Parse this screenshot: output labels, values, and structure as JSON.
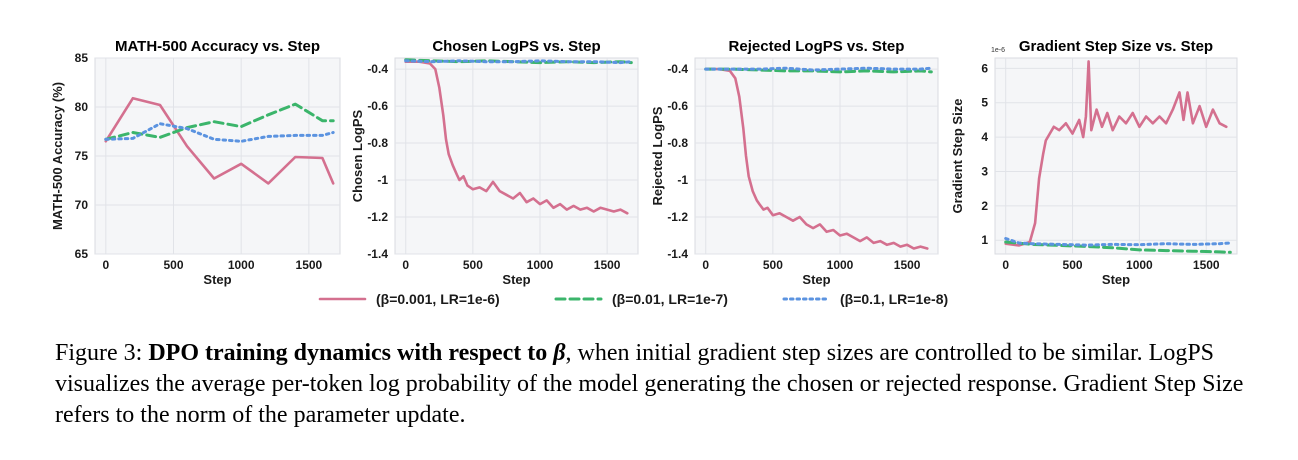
{
  "figure": {
    "caption_number": "Figure 3:",
    "caption_bold": "DPO training dynamics with respect to",
    "caption_symbol": "β",
    "caption_rest": ", when initial gradient step sizes are controlled to be similar. LogPS visualizes the average per-token log probability of the model generating the chosen or rejected response. Gradient Step Size refers to the norm of the parameter update."
  },
  "legend": [
    {
      "label": "(β=0.001, LR=1e-6)",
      "color": "#d4708f",
      "style": "solid"
    },
    {
      "label": "(β=0.01, LR=1e-7)",
      "color": "#3bb56b",
      "style": "dashed"
    },
    {
      "label": "(β=0.1, LR=1e-8)",
      "color": "#5b93e0",
      "style": "dotted"
    }
  ],
  "chart_data": [
    {
      "type": "line",
      "title": "MATH-500 Accuracy vs. Step",
      "xlabel": "Step",
      "ylabel": "MATH-500 Accuracy (%)",
      "xlim": [
        -80,
        1730
      ],
      "ylim": [
        65,
        85
      ],
      "xticks": [
        0,
        500,
        1000,
        1500
      ],
      "yticks": [
        65,
        70,
        75,
        80,
        85
      ],
      "sci_label": "",
      "grid": true,
      "series": [
        {
          "name": "(β=0.001, LR=1e-6)",
          "x": [
            0,
            200,
            400,
            600,
            800,
            1000,
            1200,
            1400,
            1600,
            1680
          ],
          "y": [
            76.5,
            80.9,
            80.2,
            76.0,
            72.7,
            74.2,
            72.2,
            74.9,
            74.8,
            72.2
          ]
        },
        {
          "name": "(β=0.01, LR=1e-7)",
          "x": [
            0,
            200,
            400,
            600,
            800,
            1000,
            1200,
            1400,
            1600,
            1680
          ],
          "y": [
            76.7,
            77.4,
            76.9,
            77.9,
            78.5,
            78.0,
            79.2,
            80.3,
            78.6,
            78.6
          ]
        },
        {
          "name": "(β=0.1, LR=1e-8)",
          "x": [
            0,
            200,
            400,
            600,
            800,
            1000,
            1200,
            1400,
            1600,
            1680
          ],
          "y": [
            76.7,
            76.8,
            78.3,
            77.8,
            76.7,
            76.5,
            77.0,
            77.1,
            77.1,
            77.4
          ]
        }
      ]
    },
    {
      "type": "line",
      "title": "Chosen LogPS vs. Step",
      "xlabel": "Step",
      "ylabel": "Chosen LogPS",
      "xlim": [
        -80,
        1730
      ],
      "ylim": [
        -1.4,
        -0.34
      ],
      "xticks": [
        0,
        500,
        1000,
        1500
      ],
      "yticks": [
        -1.4,
        -1.2,
        -1.0,
        -0.8,
        -0.6,
        -0.4
      ],
      "sci_label": "",
      "grid": true,
      "series": [
        {
          "name": "(β=0.001, LR=1e-6)",
          "x": [
            0,
            100,
            180,
            220,
            250,
            280,
            300,
            320,
            350,
            380,
            400,
            430,
            460,
            500,
            550,
            600,
            650,
            700,
            750,
            800,
            850,
            900,
            950,
            1000,
            1050,
            1100,
            1150,
            1200,
            1250,
            1300,
            1350,
            1400,
            1450,
            1500,
            1550,
            1600,
            1650
          ],
          "y": [
            -0.36,
            -0.36,
            -0.37,
            -0.4,
            -0.5,
            -0.65,
            -0.78,
            -0.86,
            -0.92,
            -0.97,
            -1.0,
            -0.98,
            -1.03,
            -1.05,
            -1.04,
            -1.06,
            -1.01,
            -1.06,
            -1.08,
            -1.1,
            -1.07,
            -1.12,
            -1.1,
            -1.13,
            -1.11,
            -1.15,
            -1.13,
            -1.16,
            -1.14,
            -1.16,
            -1.15,
            -1.17,
            -1.15,
            -1.16,
            -1.17,
            -1.16,
            -1.18
          ]
        },
        {
          "name": "(β=0.01, LR=1e-7)",
          "x": [
            0,
            200,
            400,
            600,
            800,
            1000,
            1200,
            1400,
            1600,
            1680
          ],
          "y": [
            -0.35,
            -0.355,
            -0.36,
            -0.355,
            -0.36,
            -0.365,
            -0.36,
            -0.365,
            -0.36,
            -0.365
          ]
        },
        {
          "name": "(β=0.1, LR=1e-8)",
          "x": [
            0,
            200,
            400,
            600,
            800,
            1000,
            1200,
            1400,
            1600,
            1680
          ],
          "y": [
            -0.355,
            -0.36,
            -0.355,
            -0.36,
            -0.36,
            -0.355,
            -0.36,
            -0.36,
            -0.365,
            -0.36
          ]
        }
      ]
    },
    {
      "type": "line",
      "title": "Rejected LogPS vs. Step",
      "xlabel": "Step",
      "ylabel": "Rejected LogPS",
      "xlim": [
        -80,
        1730
      ],
      "ylim": [
        -1.4,
        -0.34
      ],
      "xticks": [
        0,
        500,
        1000,
        1500
      ],
      "yticks": [
        -1.4,
        -1.2,
        -1.0,
        -0.8,
        -0.6,
        -0.4
      ],
      "sci_label": "",
      "grid": true,
      "series": [
        {
          "name": "(β=0.001, LR=1e-6)",
          "x": [
            0,
            100,
            180,
            220,
            250,
            280,
            300,
            320,
            350,
            380,
            400,
            430,
            460,
            500,
            550,
            600,
            650,
            700,
            750,
            800,
            850,
            900,
            950,
            1000,
            1050,
            1100,
            1150,
            1200,
            1250,
            1300,
            1350,
            1400,
            1450,
            1500,
            1550,
            1600,
            1650
          ],
          "y": [
            -0.4,
            -0.4,
            -0.41,
            -0.45,
            -0.55,
            -0.72,
            -0.87,
            -0.98,
            -1.06,
            -1.11,
            -1.13,
            -1.16,
            -1.15,
            -1.19,
            -1.18,
            -1.2,
            -1.22,
            -1.2,
            -1.24,
            -1.26,
            -1.24,
            -1.28,
            -1.27,
            -1.3,
            -1.29,
            -1.31,
            -1.33,
            -1.31,
            -1.34,
            -1.33,
            -1.35,
            -1.34,
            -1.36,
            -1.35,
            -1.37,
            -1.36,
            -1.37
          ]
        },
        {
          "name": "(β=0.01, LR=1e-7)",
          "x": [
            0,
            200,
            400,
            600,
            800,
            1000,
            1200,
            1400,
            1600,
            1680
          ],
          "y": [
            -0.4,
            -0.4,
            -0.405,
            -0.41,
            -0.41,
            -0.415,
            -0.41,
            -0.415,
            -0.41,
            -0.415
          ]
        },
        {
          "name": "(β=0.1, LR=1e-8)",
          "x": [
            0,
            200,
            400,
            600,
            800,
            1000,
            1200,
            1400,
            1600,
            1680
          ],
          "y": [
            -0.4,
            -0.4,
            -0.4,
            -0.395,
            -0.405,
            -0.4,
            -0.395,
            -0.4,
            -0.4,
            -0.395
          ]
        }
      ]
    },
    {
      "type": "line",
      "title": "Gradient Step Size vs. Step",
      "xlabel": "Step",
      "ylabel": "Gradient Step Size",
      "xlim": [
        -80,
        1730
      ],
      "ylim": [
        0.6,
        6.3
      ],
      "xticks": [
        0,
        500,
        1000,
        1500
      ],
      "yticks": [
        1,
        2,
        3,
        4,
        5,
        6
      ],
      "sci_label": "1e-6",
      "grid": true,
      "series": [
        {
          "name": "(β=0.001, LR=1e-6)",
          "x": [
            0,
            100,
            180,
            220,
            250,
            280,
            300,
            330,
            360,
            400,
            450,
            500,
            550,
            580,
            600,
            620,
            640,
            680,
            720,
            760,
            800,
            850,
            900,
            950,
            1000,
            1050,
            1100,
            1150,
            1200,
            1250,
            1300,
            1330,
            1360,
            1400,
            1450,
            1500,
            1550,
            1600,
            1650
          ],
          "y": [
            0.9,
            0.85,
            0.95,
            1.5,
            2.8,
            3.5,
            3.9,
            4.1,
            4.3,
            4.2,
            4.4,
            4.1,
            4.5,
            4.0,
            4.6,
            6.2,
            4.2,
            4.8,
            4.3,
            4.7,
            4.2,
            4.6,
            4.4,
            4.7,
            4.3,
            4.6,
            4.4,
            4.6,
            4.4,
            4.8,
            5.3,
            4.5,
            5.3,
            4.4,
            4.9,
            4.3,
            4.8,
            4.4,
            4.3
          ]
        },
        {
          "name": "(β=0.01, LR=1e-7)",
          "x": [
            0,
            200,
            400,
            600,
            800,
            1000,
            1200,
            1400,
            1600,
            1680
          ],
          "y": [
            0.95,
            0.88,
            0.85,
            0.82,
            0.78,
            0.72,
            0.7,
            0.68,
            0.66,
            0.65
          ]
        },
        {
          "name": "(β=0.1, LR=1e-8)",
          "x": [
            0,
            100,
            200,
            400,
            600,
            800,
            1000,
            1200,
            1400,
            1600,
            1680
          ],
          "y": [
            1.05,
            0.92,
            0.9,
            0.88,
            0.86,
            0.88,
            0.87,
            0.9,
            0.88,
            0.9,
            0.92
          ]
        }
      ]
    }
  ]
}
